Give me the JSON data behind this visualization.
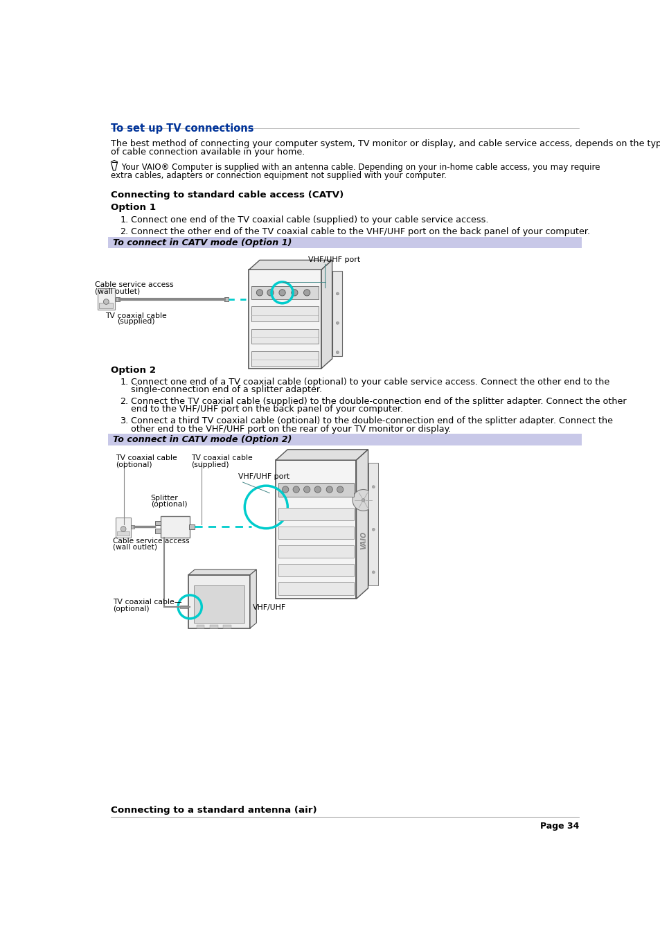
{
  "bg_color": "#ffffff",
  "title": "To set up TV connections",
  "title_color": "#003399",
  "title_fontsize": 10.5,
  "body_fontsize": 9.2,
  "small_fontsize": 8.0,
  "body_color": "#000000",
  "para1_line1": "The best method of connecting your computer system, TV monitor or display, and cable service access, depends on the type",
  "para1_line2": "of cable connection available in your home.",
  "note_line1": " Your VAIO® Computer is supplied with an antenna cable. Depending on your in-home cable access, you may require",
  "note_line2": "extra cables, adapters or connection equipment not supplied with your computer.",
  "section1_title": "Connecting to standard cable access (CATV)",
  "option1_title": "Option 1",
  "option1_item1": "Connect one end of the TV coaxial cable (supplied) to your cable service access.",
  "option1_item2": "Connect the other end of the TV coaxial cable to the VHF/UHF port on the back panel of your computer.",
  "banner1_text": "To connect in CATV mode (Option 1)",
  "banner_bg": "#c8c8e8",
  "option2_title": "Option 2",
  "option2_item1a": "Connect one end of a TV coaxial cable (optional) to your cable service access. Connect the other end to the",
  "option2_item1b": "single-connection end of a splitter adapter.",
  "option2_item2a": "Connect the TV coaxial cable (supplied) to the double-connection end of the splitter adapter. Connect the other",
  "option2_item2b": "end to the VHF/UHF port on the back panel of your computer.",
  "option2_item3a": "Connect a third TV coaxial cable (optional) to the double-connection end of the splitter adapter. Connect the",
  "option2_item3b": "other end to the VHF/UHF port on the rear of your TV monitor or display.",
  "banner2_text": "To connect in CATV mode (Option 2)",
  "section2_title": "Connecting to a standard antenna (air)",
  "page_num": "Page 34",
  "cyan": "#00cccc",
  "gray_line": "#aaaaaa",
  "dark_gray": "#555555",
  "light_gray": "#e8e8e8",
  "mid_gray": "#cccccc",
  "dark_border": "#333333"
}
